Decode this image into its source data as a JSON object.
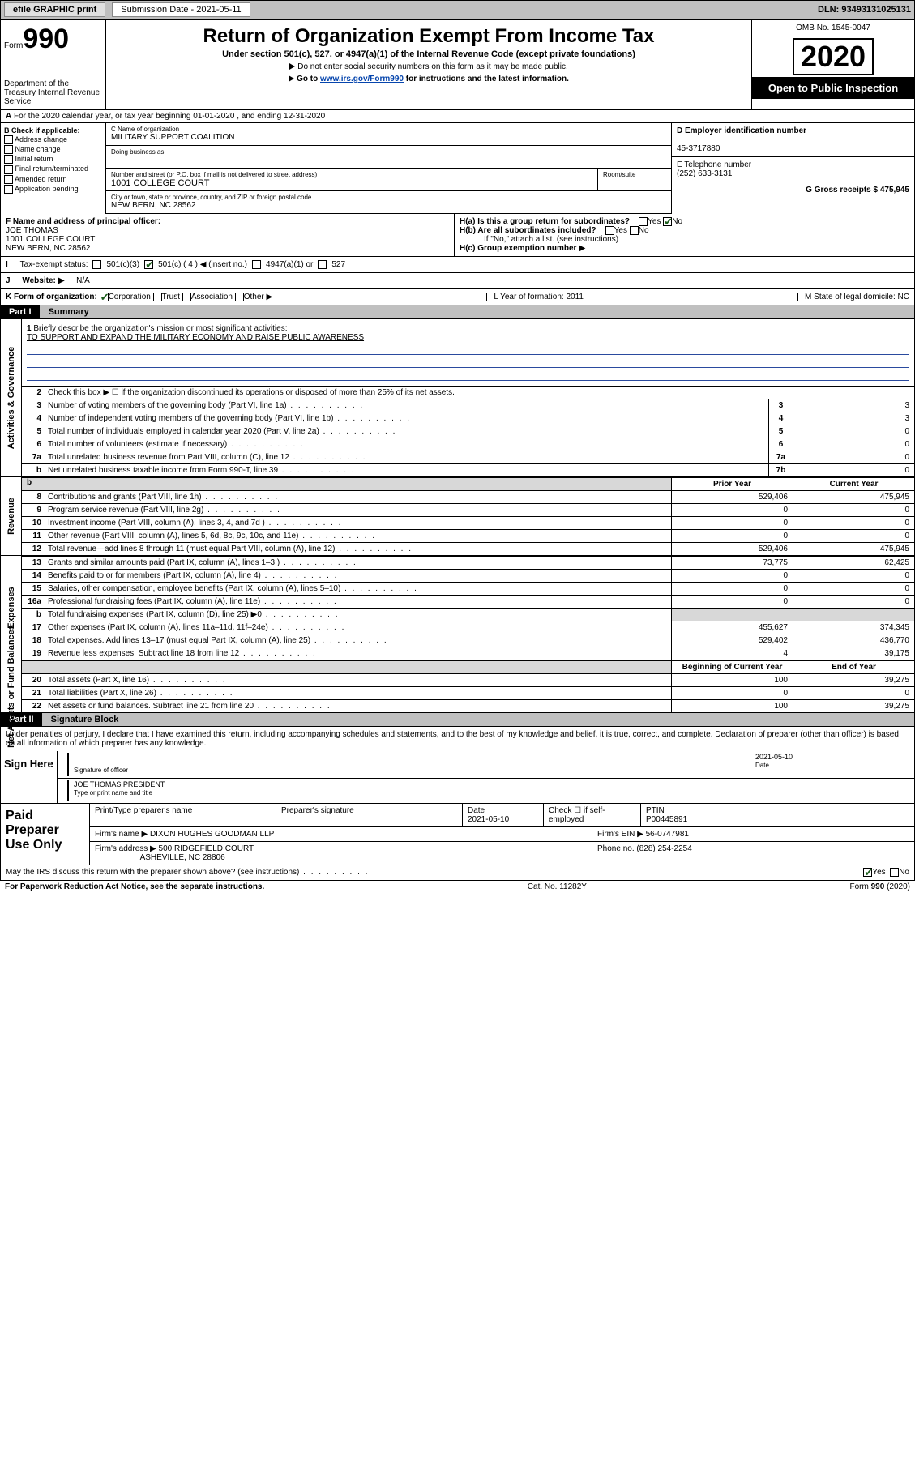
{
  "topbar": {
    "efile": "efile GRAPHIC print",
    "sub_label": "Submission Date - 2021-05-11",
    "dln": "DLN: 93493131025131"
  },
  "header": {
    "form_word": "Form",
    "form_num": "990",
    "dept": "Department of the Treasury\nInternal Revenue Service",
    "title": "Return of Organization Exempt From Income Tax",
    "subtitle": "Under section 501(c), 527, or 4947(a)(1) of the Internal Revenue Code (except private foundations)",
    "note1": "Do not enter social security numbers on this form as it may be made public.",
    "note2_pre": "Go to ",
    "note2_link": "www.irs.gov/Form990",
    "note2_post": " for instructions and the latest information.",
    "omb": "OMB No. 1545-0047",
    "year": "2020",
    "open": "Open to Public Inspection"
  },
  "lineA": "For the 2020 calendar year, or tax year beginning 01-01-2020    , and ending 12-31-2020",
  "colB": {
    "title": "B Check if applicable:",
    "opts": [
      "Address change",
      "Name change",
      "Initial return",
      "Final return/terminated",
      "Amended return",
      "Application pending"
    ]
  },
  "colC": {
    "name_lbl": "C Name of organization",
    "name": "MILITARY SUPPORT COALITION",
    "dba_lbl": "Doing business as",
    "dba": "",
    "addr_lbl": "Number and street (or P.O. box if mail is not delivered to street address)",
    "room_lbl": "Room/suite",
    "addr": "1001 COLLEGE COURT",
    "city_lbl": "City or town, state or province, country, and ZIP or foreign postal code",
    "city": "NEW BERN, NC  28562"
  },
  "colD": {
    "d_lbl": "D Employer identification number",
    "d_val": "45-3717880",
    "e_lbl": "E Telephone number",
    "e_val": "(252) 633-3131",
    "g_lbl": "G Gross receipts $ 475,945"
  },
  "f": {
    "lbl": "F  Name and address of principal officer:",
    "name": "JOE THOMAS",
    "addr1": "1001 COLLEGE COURT",
    "addr2": "NEW BERN, NC  28562"
  },
  "h": {
    "ha": "H(a)  Is this a group return for subordinates?",
    "ha_yes": "Yes",
    "ha_no": "No",
    "hb": "H(b)  Are all subordinates included?",
    "hb_yes": "Yes",
    "hb_no": "No",
    "hb_note": "If \"No,\" attach a list. (see instructions)",
    "hc": "H(c)  Group exemption number ▶"
  },
  "taxstatus": {
    "lbl": "Tax-exempt status:",
    "o1": "501(c)(3)",
    "o2": "501(c) ( 4 ) ◀ (insert no.)",
    "o3": "4947(a)(1) or",
    "o4": "527"
  },
  "website": {
    "lbl": "Website: ▶",
    "val": "N/A"
  },
  "k": {
    "lbl": "K Form of organization:",
    "o1": "Corporation",
    "o2": "Trust",
    "o3": "Association",
    "o4": "Other ▶",
    "l": "L Year of formation: 2011",
    "m": "M State of legal domicile: NC"
  },
  "part1": {
    "hdr": "Part I",
    "title": "Summary"
  },
  "sections": {
    "gov": "Activities & Governance",
    "rev": "Revenue",
    "exp": "Expenses",
    "net": "Net Assets or Fund Balances"
  },
  "l1": {
    "n": "1",
    "t": "Briefly describe the organization's mission or most significant activities:",
    "v": "TO SUPPORT AND EXPAND THE MILITARY ECONOMY AND RAISE PUBLIC AWARENESS"
  },
  "l2": {
    "n": "2",
    "t": "Check this box ▶ ☐  if the organization discontinued its operations or disposed of more than 25% of its net assets."
  },
  "rows_gov": [
    {
      "n": "3",
      "t": "Number of voting members of the governing body (Part VI, line 1a)",
      "b": "3",
      "v": "3"
    },
    {
      "n": "4",
      "t": "Number of independent voting members of the governing body (Part VI, line 1b)",
      "b": "4",
      "v": "3"
    },
    {
      "n": "5",
      "t": "Total number of individuals employed in calendar year 2020 (Part V, line 2a)",
      "b": "5",
      "v": "0"
    },
    {
      "n": "6",
      "t": "Total number of volunteers (estimate if necessary)",
      "b": "6",
      "v": "0"
    },
    {
      "n": "7a",
      "t": "Total unrelated business revenue from Part VIII, column (C), line 12",
      "b": "7a",
      "v": "0"
    },
    {
      "n": "b",
      "t": "Net unrelated business taxable income from Form 990-T, line 39",
      "b": "7b",
      "v": "0"
    }
  ],
  "hdr_py": "Prior Year",
  "hdr_cy": "Current Year",
  "rows_rev": [
    {
      "n": "8",
      "t": "Contributions and grants (Part VIII, line 1h)",
      "p": "529,406",
      "c": "475,945"
    },
    {
      "n": "9",
      "t": "Program service revenue (Part VIII, line 2g)",
      "p": "0",
      "c": "0"
    },
    {
      "n": "10",
      "t": "Investment income (Part VIII, column (A), lines 3, 4, and 7d )",
      "p": "0",
      "c": "0"
    },
    {
      "n": "11",
      "t": "Other revenue (Part VIII, column (A), lines 5, 6d, 8c, 9c, 10c, and 11e)",
      "p": "0",
      "c": "0"
    },
    {
      "n": "12",
      "t": "Total revenue—add lines 8 through 11 (must equal Part VIII, column (A), line 12)",
      "p": "529,406",
      "c": "475,945"
    }
  ],
  "rows_exp": [
    {
      "n": "13",
      "t": "Grants and similar amounts paid (Part IX, column (A), lines 1–3 )",
      "p": "73,775",
      "c": "62,425"
    },
    {
      "n": "14",
      "t": "Benefits paid to or for members (Part IX, column (A), line 4)",
      "p": "0",
      "c": "0"
    },
    {
      "n": "15",
      "t": "Salaries, other compensation, employee benefits (Part IX, column (A), lines 5–10)",
      "p": "0",
      "c": "0"
    },
    {
      "n": "16a",
      "t": "Professional fundraising fees (Part IX, column (A), line 11e)",
      "p": "0",
      "c": "0"
    },
    {
      "n": "b",
      "t": "Total fundraising expenses (Part IX, column (D), line 25) ▶0",
      "p": "",
      "c": ""
    },
    {
      "n": "17",
      "t": "Other expenses (Part IX, column (A), lines 11a–11d, 11f–24e)",
      "p": "455,627",
      "c": "374,345"
    },
    {
      "n": "18",
      "t": "Total expenses. Add lines 13–17 (must equal Part IX, column (A), line 25)",
      "p": "529,402",
      "c": "436,770"
    },
    {
      "n": "19",
      "t": "Revenue less expenses. Subtract line 18 from line 12",
      "p": "4",
      "c": "39,175"
    }
  ],
  "hdr_boy": "Beginning of Current Year",
  "hdr_eoy": "End of Year",
  "rows_net": [
    {
      "n": "20",
      "t": "Total assets (Part X, line 16)",
      "p": "100",
      "c": "39,275"
    },
    {
      "n": "21",
      "t": "Total liabilities (Part X, line 26)",
      "p": "0",
      "c": "0"
    },
    {
      "n": "22",
      "t": "Net assets or fund balances. Subtract line 21 from line 20",
      "p": "100",
      "c": "39,275"
    }
  ],
  "part2": {
    "hdr": "Part II",
    "title": "Signature Block"
  },
  "sig": {
    "declare": "Under penalties of perjury, I declare that I have examined this return, including accompanying schedules and statements, and to the best of my knowledge and belief, it is true, correct, and complete. Declaration of preparer (other than officer) is based on all information of which preparer has any knowledge.",
    "sign_here": "Sign Here",
    "sig_officer": "Signature of officer",
    "date": "2021-05-10",
    "date_lbl": "Date",
    "name": "JOE THOMAS  PRESIDENT",
    "name_lbl": "Type or print name and title"
  },
  "paid": {
    "title": "Paid Preparer Use Only",
    "h1": "Print/Type preparer's name",
    "h2": "Preparer's signature",
    "h3": "Date",
    "h3v": "2021-05-10",
    "h4": "Check ☐ if self-employed",
    "h5": "PTIN",
    "h5v": "P00445891",
    "firm_lbl": "Firm's name    ▶",
    "firm": "DIXON HUGHES GOODMAN LLP",
    "ein_lbl": "Firm's EIN ▶",
    "ein": "56-0747981",
    "addr_lbl": "Firm's address ▶",
    "addr1": "500 RIDGEFIELD COURT",
    "addr2": "ASHEVILLE, NC  28806",
    "phone_lbl": "Phone no.",
    "phone": "(828) 254-2254"
  },
  "irs_q": "May the IRS discuss this return with the preparer shown above? (see instructions)",
  "irs_yes": "Yes",
  "irs_no": "No",
  "footer": {
    "l": "For Paperwork Reduction Act Notice, see the separate instructions.",
    "m": "Cat. No. 11282Y",
    "r": "Form 990 (2020)"
  },
  "colors": {
    "bar": "#c0c0c0",
    "link": "#0645ad",
    "uline": "#2a4a9e",
    "black": "#000000"
  }
}
